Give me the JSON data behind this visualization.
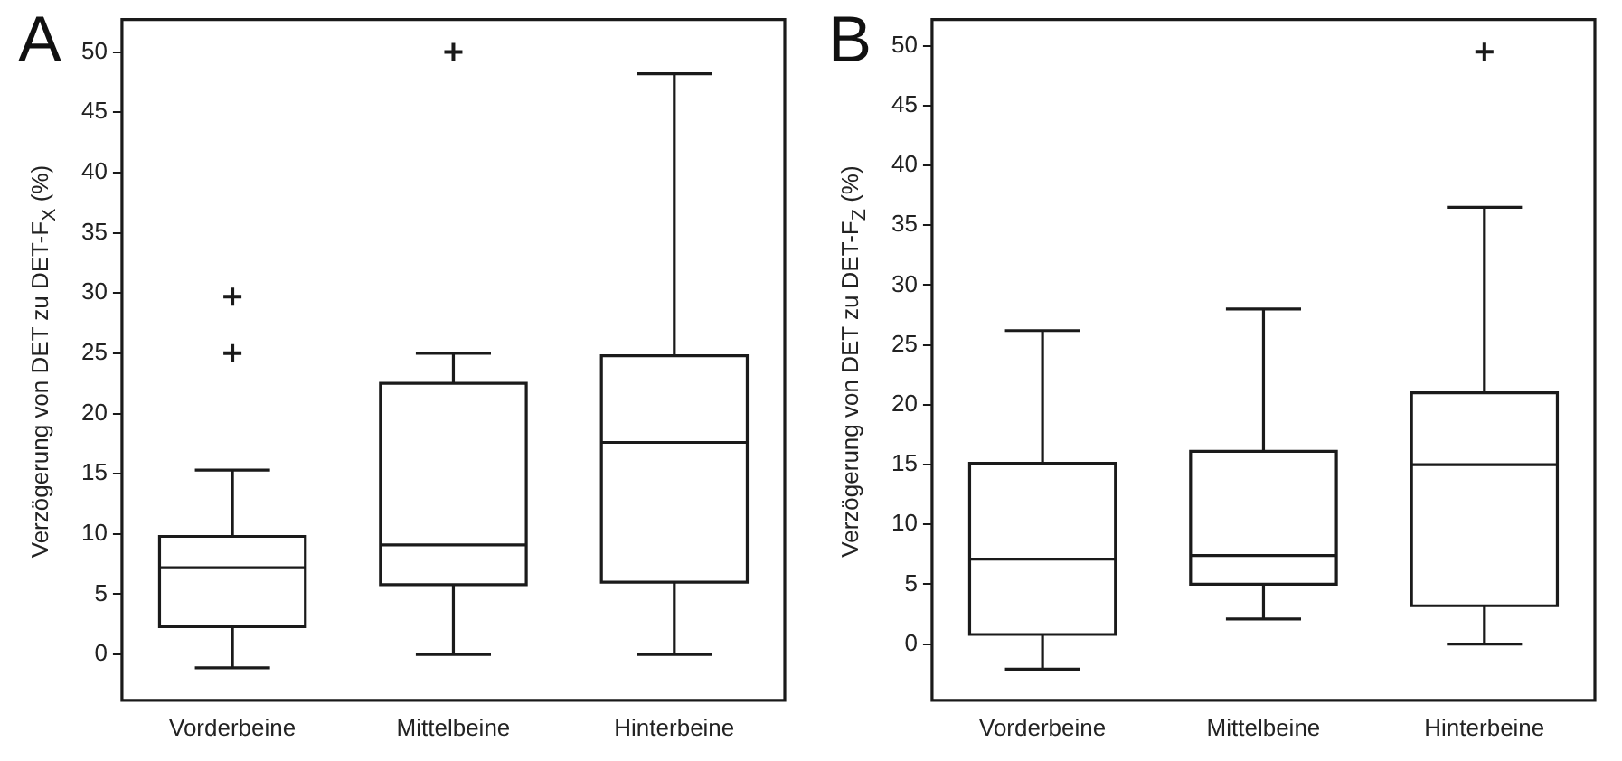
{
  "chart_data": [
    {
      "type": "box",
      "title": "A",
      "ylabel": "Verzögerung von DET zu DET-F$_{X}$ (%)",
      "categories": [
        "Vorderbeine",
        "Mittelbeine",
        "Hinterbeine"
      ],
      "ylim": [
        -3.8,
        52.7
      ],
      "yticks": [
        0,
        5,
        10,
        15,
        20,
        25,
        30,
        35,
        40,
        45,
        50
      ],
      "grid": false,
      "marker": "cross",
      "boxes": [
        {
          "low": -1.1,
          "q1": 2.3,
          "median": 7.2,
          "q3": 9.8,
          "high": 15.3,
          "outliers": [
            25,
            29.7
          ]
        },
        {
          "low": 0,
          "q1": 5.8,
          "median": 9.1,
          "q3": 22.5,
          "high": 25,
          "outliers": [
            50
          ]
        },
        {
          "low": 0,
          "q1": 6,
          "median": 17.6,
          "q3": 24.8,
          "high": 48.2
        }
      ]
    },
    {
      "type": "box",
      "title": "B",
      "ylabel": "Verzögerung von DET zu DET-F$_{Z}$ (%)",
      "categories": [
        "Vorderbeine",
        "Mittelbeine",
        "Hinterbeine"
      ],
      "ylim": [
        -4.7,
        52.2
      ],
      "yticks": [
        0,
        5,
        10,
        15,
        20,
        25,
        30,
        35,
        40,
        45,
        50
      ],
      "grid": false,
      "marker": "cross",
      "boxes": [
        {
          "low": -2.1,
          "q1": 0.8,
          "median": 7.1,
          "q3": 15.1,
          "high": 26.2
        },
        {
          "low": 2.1,
          "q1": 5,
          "median": 7.4,
          "q3": 16.1,
          "high": 28
        },
        {
          "low": 0,
          "q1": 3.2,
          "median": 15,
          "q3": 21,
          "high": 36.5,
          "outliers": [
            49.5
          ]
        }
      ]
    }
  ]
}
